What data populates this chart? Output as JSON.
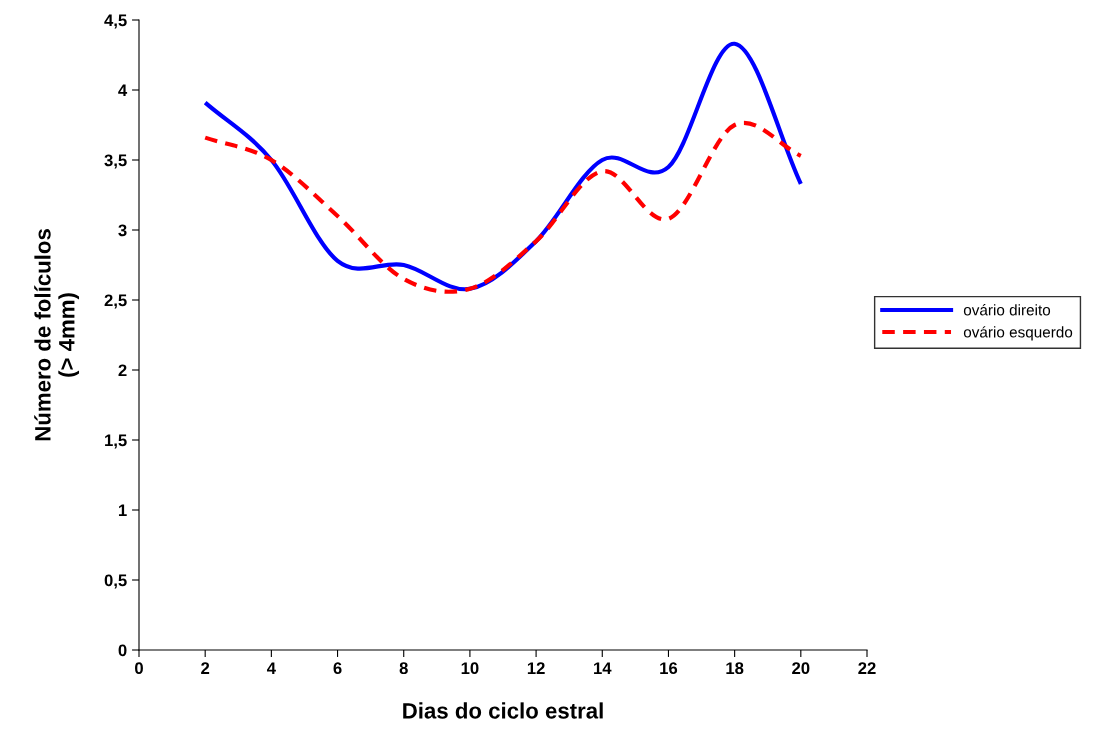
{
  "chart_data": {
    "type": "line",
    "xlabel": "Dias do ciclo estral",
    "ylabel": "Número de folículos\n(> 4mm)",
    "x": [
      2,
      4,
      6,
      8,
      10,
      12,
      14,
      16,
      18,
      20
    ],
    "series": [
      {
        "name": "ovário direito",
        "color": "#0000ff",
        "line_style": "solid",
        "values": [
          3.91,
          3.5,
          2.78,
          2.75,
          2.58,
          2.92,
          3.5,
          3.45,
          4.33,
          3.33
        ]
      },
      {
        "name": "ovário esquerdo",
        "color": "#ff0000",
        "line_style": "dashed",
        "values": [
          3.66,
          3.5,
          3.1,
          2.65,
          2.58,
          2.92,
          3.42,
          3.08,
          3.75,
          3.53
        ]
      }
    ],
    "xlim": [
      0,
      22
    ],
    "xticks": [
      0,
      2,
      4,
      6,
      8,
      10,
      12,
      14,
      16,
      18,
      20,
      22
    ],
    "ylim": [
      0,
      4.5
    ],
    "yticks": [
      0,
      {
        "value": 0.5,
        "label": "0,5"
      },
      1,
      {
        "value": 1.5,
        "label": "1,5"
      },
      2,
      {
        "value": 2.5,
        "label": "2,5"
      },
      3,
      {
        "value": 3.5,
        "label": "3,5"
      },
      4,
      {
        "value": 4.5,
        "label": "4,5"
      }
    ],
    "grid": false,
    "legend": "right",
    "marker": "none"
  }
}
